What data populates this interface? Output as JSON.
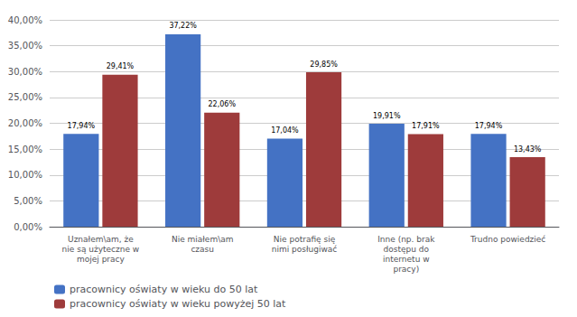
{
  "chart_data": {
    "type": "bar",
    "categories": [
      "Uznałem\\am, że\nnie są użyteczne w\nmojej pracy",
      "Nie miałem\\am\nczasu",
      "Nie potrafię się\nnimi posługiwać",
      "Inne (np. brak\ndostępu do\ninternetu w\npracy)",
      "Trudno powiedzieć"
    ],
    "series": [
      {
        "name": "pracownicy oświaty w wieku do 50 lat",
        "color": "#4472C4",
        "values": [
          17.94,
          37.22,
          17.04,
          19.91,
          17.94
        ],
        "value_labels": [
          "17,94%",
          "37,22%",
          "17,04%",
          "19,91%",
          "17,94%"
        ]
      },
      {
        "name": "pracownicy oświaty w wieku powyżej 50 lat",
        "color": "#9E3B3B",
        "values": [
          29.41,
          22.06,
          29.85,
          17.91,
          13.43
        ],
        "value_labels": [
          "29,41%",
          "22,06%",
          "29,85%",
          "17,91%",
          "13,43%"
        ]
      }
    ],
    "ylim": [
      0,
      40
    ],
    "yticks": [
      {
        "value": 0,
        "label": "0,00%"
      },
      {
        "value": 5,
        "label": "5,00%"
      },
      {
        "value": 10,
        "label": "10,00%"
      },
      {
        "value": 15,
        "label": "15,00%"
      },
      {
        "value": 20,
        "label": "20,00%"
      },
      {
        "value": 25,
        "label": "25,00%"
      },
      {
        "value": 30,
        "label": "30,00%"
      },
      {
        "value": 35,
        "label": "35,00%"
      },
      {
        "value": 40,
        "label": "40,00%"
      }
    ],
    "grid": true,
    "legend": "lower left",
    "data_labels": true
  }
}
